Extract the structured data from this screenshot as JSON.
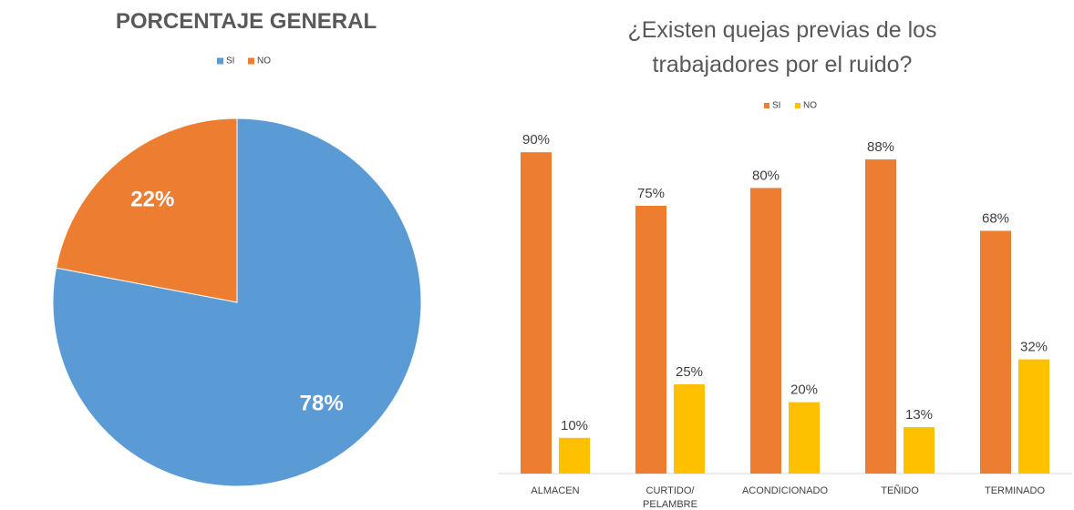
{
  "chart_data": [
    {
      "type": "pie",
      "title": "PORCENTAJE GENERAL",
      "categories": [
        "SI",
        "NO"
      ],
      "values": [
        78,
        22
      ],
      "value_labels": [
        "78%",
        "22%"
      ],
      "colors": [
        "#5B9BD5",
        "#ED7D31"
      ]
    },
    {
      "type": "bar",
      "title": "¿Existen quejas previas de los trabajadores por el ruido?",
      "categories": [
        "ALMACEN",
        "CURTIDO/ PELAMBRE",
        "ACONDICIONADO",
        "TEÑIDO",
        "TERMINADO"
      ],
      "series": [
        {
          "name": "SI",
          "color": "#ED7D31",
          "values": [
            90,
            75,
            80,
            88,
            68
          ],
          "value_labels": [
            "90%",
            "75%",
            "80%",
            "88%",
            "68%"
          ]
        },
        {
          "name": "NO",
          "color": "#FFC000",
          "values": [
            10,
            25,
            20,
            13,
            32
          ],
          "value_labels": [
            "10%",
            "25%",
            "20%",
            "13%",
            "32%"
          ]
        }
      ]
    }
  ]
}
